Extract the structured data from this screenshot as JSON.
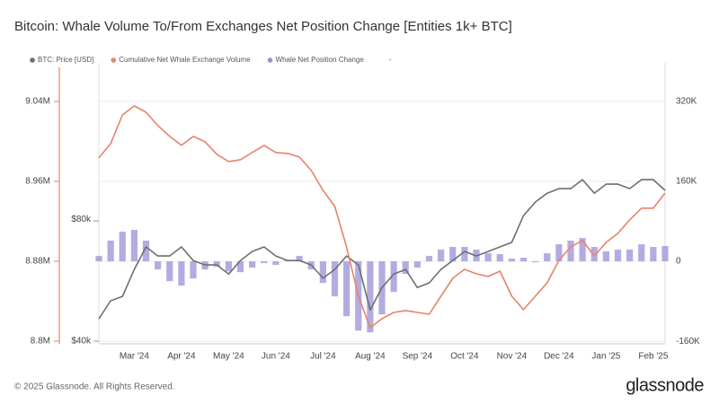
{
  "chart_data": {
    "type": "combo",
    "title": "Bitcoin: Whale Volume To/From Exchanges Net Position Change [Entities 1k+ BTC]",
    "categories": [
      null,
      null,
      null,
      "Mar '24",
      null,
      null,
      null,
      "Apr '24",
      null,
      null,
      null,
      "May '24",
      null,
      null,
      null,
      "Jun '24",
      null,
      null,
      null,
      "Jul '24",
      null,
      null,
      null,
      "Aug '24",
      null,
      null,
      null,
      "Sep '24",
      null,
      null,
      null,
      "Oct '24",
      null,
      null,
      null,
      "Nov '24",
      null,
      null,
      null,
      "Dec '24",
      null,
      null,
      null,
      "Jan '25",
      null,
      null,
      null,
      "Feb '25",
      null
    ],
    "series": [
      {
        "name": "BTC: Price [USD]",
        "type": "line",
        "axis": "y3",
        "color": "#6f6f6f",
        "values": [
          45500,
          50500,
          51800,
          60500,
          68900,
          65400,
          65400,
          68900,
          63700,
          62100,
          62100,
          58900,
          63700,
          67100,
          68900,
          65400,
          63700,
          63700,
          62100,
          57500,
          60500,
          65400,
          62100,
          47900,
          54500,
          58900,
          60500,
          54500,
          56000,
          60500,
          63700,
          67100,
          65400,
          67100,
          68900,
          70700,
          82500,
          89200,
          93900,
          96400,
          96400,
          101500,
          93900,
          98900,
          98900,
          96400,
          101500,
          101500,
          95400
        ]
      },
      {
        "name": "Cumulative Net Whale Exchange Volume",
        "type": "line",
        "axis": "y",
        "color": "#e8826a",
        "values": [
          8983400,
          8997800,
          9026500,
          9035500,
          9029200,
          9015800,
          9005000,
          8996000,
          9005000,
          8999600,
          8987000,
          8979800,
          8981600,
          8988800,
          8996000,
          8988800,
          8987900,
          8984300,
          8970800,
          8951000,
          8934900,
          8894400,
          8845000,
          8813500,
          8822500,
          8828800,
          8830600,
          8828800,
          8827000,
          8845000,
          8862900,
          8871900,
          8867400,
          8864700,
          8870100,
          8845000,
          8831500,
          8845000,
          8858400,
          8880900,
          8894400,
          8900700,
          8885400,
          8898900,
          8907900,
          8921400,
          8933100,
          8933100,
          8948300
        ]
      },
      {
        "name": "Whale Net Position Change",
        "type": "bar",
        "axis": "y2",
        "color": "#9a90d6",
        "values": [
          10800,
          41400,
          59300,
          62900,
          41400,
          -16200,
          -39600,
          -48500,
          -34200,
          -16200,
          -10800,
          -19800,
          -21600,
          -12600,
          -3600,
          -7200,
          1800,
          10800,
          -16200,
          -43200,
          -70100,
          -109700,
          -138400,
          -142000,
          -106100,
          -61100,
          -25200,
          -12600,
          10800,
          23400,
          28800,
          28800,
          23400,
          16200,
          14400,
          5400,
          7200,
          -1800,
          16200,
          34200,
          41400,
          46700,
          28800,
          19800,
          23400,
          23400,
          34200,
          28800,
          30600
        ]
      }
    ],
    "legend_extra": "-",
    "ylim": [
      8797300,
      9078600
    ],
    "yticks": [
      {
        "value": 8800000,
        "label": "8.8M"
      },
      {
        "value": 8880000,
        "label": "8.88M"
      },
      {
        "value": 8960000,
        "label": "8.96M"
      },
      {
        "value": 9040000,
        "label": "9.04M"
      }
    ],
    "y2lim": [
      -165000,
      397000
    ],
    "y2ticks": [
      {
        "value": -160000,
        "label": "-160K"
      },
      0,
      {
        "value": 160000,
        "label": "160K"
      },
      {
        "value": 320000,
        "label": "320K"
      }
    ],
    "y3lim": [
      39400,
      199000
    ],
    "y3log": true,
    "y3ticks": [
      {
        "value": 40000,
        "label": "$40k"
      },
      {
        "value": 80000,
        "label": "$80k"
      }
    ],
    "grid": true,
    "footer": "© 2025 Glassnode. All Rights Reserved.",
    "logo": "glassnode"
  }
}
